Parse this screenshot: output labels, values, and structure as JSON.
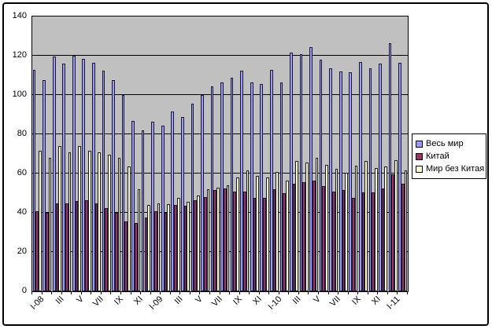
{
  "chart_data": {
    "type": "bar",
    "title": "",
    "categories": [
      "I-08",
      "",
      "III",
      "",
      "V",
      "",
      "VII",
      "",
      "IX",
      "",
      "XI",
      "",
      "I-09",
      "",
      "III",
      "",
      "V",
      "",
      "VII",
      "",
      "IX",
      "",
      "XI",
      "",
      "I-10",
      "",
      "III",
      "",
      "V",
      "",
      "VII",
      "",
      "IX",
      "",
      "XI",
      "",
      "I-11",
      ""
    ],
    "series": [
      {
        "name": "Весь мир",
        "color": "#9999FF",
        "values": [
          113,
          107.5,
          119.5,
          116,
          120,
          118.5,
          116.5,
          112.5,
          107.5,
          100,
          87,
          82,
          86.5,
          84.5,
          91.5,
          89,
          95.5,
          100,
          104.5,
          106.5,
          109,
          112.5,
          106.5,
          105.5,
          113,
          106.5,
          121.5,
          121,
          124.5,
          118,
          113.5,
          112,
          111.5,
          117,
          113.5,
          116,
          126.5,
          116.5
        ]
      },
      {
        "name": "Китай",
        "color": "#993366",
        "values": [
          41,
          40,
          45,
          45,
          46,
          46.5,
          45,
          42.5,
          40,
          35.5,
          35,
          37.5,
          41,
          40,
          44,
          43.5,
          46.5,
          48,
          51.5,
          52.5,
          51,
          51,
          47.5,
          47.5,
          52,
          50,
          55,
          55.5,
          56.5,
          53.5,
          51,
          51.5,
          47.5,
          50.5,
          50.5,
          52.5,
          59.5,
          55
        ]
      },
      {
        "name": "Мир без Китая",
        "color": "#FFFFCC",
        "values": [
          71.5,
          68,
          74,
          71,
          74,
          71.5,
          71,
          69.5,
          68,
          63.5,
          52,
          44,
          45,
          44.5,
          47.5,
          45.5,
          49,
          52,
          53,
          54,
          58,
          61.5,
          59,
          58,
          61,
          56.5,
          66.5,
          65.5,
          68,
          64.5,
          62.5,
          60.5,
          64,
          66.5,
          63,
          63.5,
          67,
          61.5
        ]
      }
    ],
    "xlabel": "",
    "ylabel": "",
    "ylim": [
      0,
      140
    ],
    "yticks": [
      0,
      20,
      40,
      60,
      80,
      100,
      120,
      140
    ],
    "grid": true,
    "legend_position": "right",
    "plot_bg": "#C0C0C0",
    "grid_color": "#000000",
    "axis_text_color": "#000000"
  }
}
